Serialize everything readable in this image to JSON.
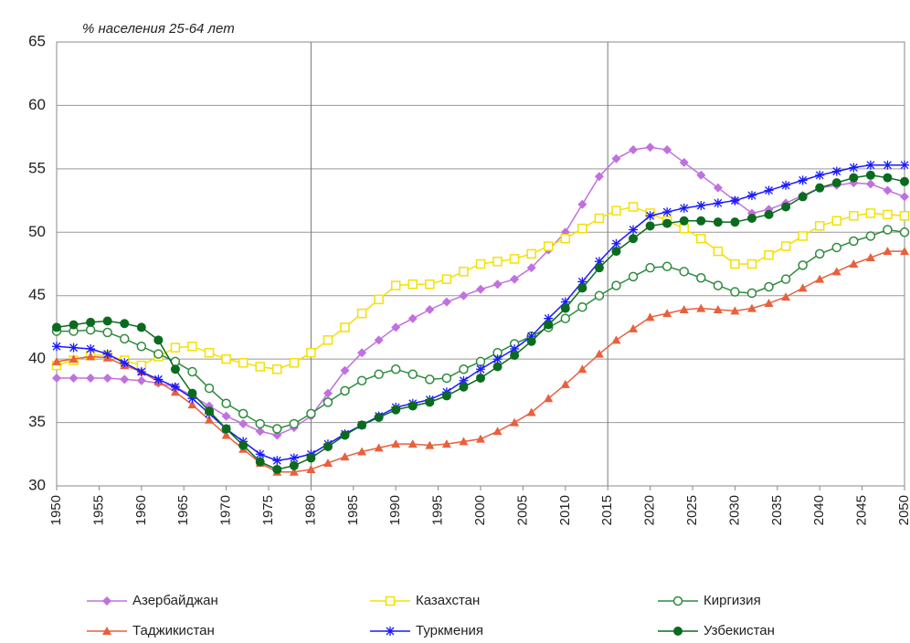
{
  "chart_data": {
    "type": "line",
    "title": "% населения 25-64 лет",
    "x": [
      1950,
      1952,
      1954,
      1956,
      1958,
      1960,
      1962,
      1964,
      1966,
      1968,
      1970,
      1972,
      1974,
      1976,
      1978,
      1980,
      1982,
      1984,
      1986,
      1988,
      1990,
      1992,
      1994,
      1996,
      1998,
      2000,
      2002,
      2004,
      2006,
      2008,
      2010,
      2012,
      2014,
      2016,
      2018,
      2020,
      2022,
      2024,
      2026,
      2028,
      2030,
      2032,
      2034,
      2036,
      2038,
      2040,
      2042,
      2044,
      2046,
      2048,
      2050
    ],
    "xlim": [
      1950,
      2050
    ],
    "xticks": [
      1950,
      1955,
      1960,
      1965,
      1970,
      1975,
      1980,
      1985,
      1990,
      1995,
      2000,
      2005,
      2010,
      2015,
      2020,
      2025,
      2030,
      2035,
      2040,
      2045,
      2050
    ],
    "x_gridlines": [
      1980,
      2015
    ],
    "ylim": [
      30,
      65
    ],
    "yticks": [
      30,
      35,
      40,
      45,
      50,
      55,
      60,
      65
    ],
    "grid": true,
    "legend": "bottom",
    "series": [
      {
        "name": "Азербайджан",
        "color": "#c070e0",
        "marker": "diamond",
        "values": [
          38.5,
          38.5,
          38.5,
          38.5,
          38.4,
          38.3,
          38.1,
          37.8,
          37.1,
          36.3,
          35.5,
          34.9,
          34.3,
          34.0,
          34.6,
          35.5,
          37.3,
          39.1,
          40.5,
          41.5,
          42.5,
          43.2,
          43.9,
          44.5,
          45.0,
          45.5,
          45.9,
          46.3,
          47.2,
          48.6,
          50.0,
          52.2,
          54.4,
          55.8,
          56.5,
          56.7,
          56.5,
          55.5,
          54.5,
          53.5,
          52.5,
          51.5,
          51.8,
          52.3,
          52.9,
          53.5,
          53.7,
          53.9,
          53.8,
          53.3,
          52.8
        ]
      },
      {
        "name": "Казахстан",
        "color": "#f5e000",
        "marker": "square",
        "values": [
          39.5,
          39.9,
          40.3,
          40.3,
          39.9,
          39.5,
          40.2,
          40.9,
          41.0,
          40.5,
          40.0,
          39.7,
          39.4,
          39.2,
          39.7,
          40.5,
          41.5,
          42.5,
          43.6,
          44.7,
          45.8,
          45.9,
          45.9,
          46.3,
          46.9,
          47.5,
          47.7,
          47.9,
          48.3,
          48.9,
          49.5,
          50.3,
          51.1,
          51.7,
          52.0,
          51.5,
          50.9,
          50.3,
          49.5,
          48.5,
          47.5,
          47.5,
          48.2,
          48.9,
          49.7,
          50.5,
          50.9,
          51.3,
          51.5,
          51.4,
          51.3
        ]
      },
      {
        "name": "Киргизия",
        "color": "#2e8b3e",
        "marker": "circle-open",
        "values": [
          42.2,
          42.2,
          42.3,
          42.1,
          41.6,
          41.0,
          40.4,
          39.8,
          39.0,
          37.7,
          36.5,
          35.7,
          34.9,
          34.5,
          34.9,
          35.7,
          36.6,
          37.5,
          38.3,
          38.8,
          39.2,
          38.8,
          38.4,
          38.5,
          39.2,
          39.8,
          40.5,
          41.2,
          41.8,
          42.5,
          43.2,
          44.1,
          45.0,
          45.8,
          46.5,
          47.2,
          47.3,
          46.9,
          46.4,
          45.8,
          45.3,
          45.2,
          45.7,
          46.3,
          47.4,
          48.3,
          48.8,
          49.3,
          49.7,
          50.2,
          50.0
        ]
      },
      {
        "name": "Таджикистан",
        "color": "#e8603c",
        "marker": "triangle",
        "values": [
          39.8,
          40.0,
          40.2,
          40.1,
          39.5,
          39.0,
          38.2,
          37.4,
          36.4,
          35.2,
          34.0,
          32.9,
          31.8,
          31.1,
          31.1,
          31.3,
          31.8,
          32.3,
          32.7,
          33.0,
          33.3,
          33.3,
          33.2,
          33.3,
          33.5,
          33.7,
          34.3,
          35.0,
          35.8,
          36.9,
          38.0,
          39.2,
          40.4,
          41.5,
          42.4,
          43.3,
          43.6,
          43.9,
          44.0,
          43.9,
          43.8,
          44.0,
          44.4,
          44.9,
          45.6,
          46.3,
          46.9,
          47.5,
          48.0,
          48.5,
          48.5
        ]
      },
      {
        "name": "Туркмения",
        "color": "#1a1aff",
        "marker": "star",
        "values": [
          41.0,
          40.9,
          40.8,
          40.4,
          39.7,
          39.0,
          38.4,
          37.8,
          36.9,
          35.7,
          34.5,
          33.5,
          32.5,
          32.0,
          32.2,
          32.5,
          33.3,
          34.1,
          34.8,
          35.5,
          36.2,
          36.5,
          36.8,
          37.4,
          38.3,
          39.2,
          40.0,
          40.8,
          41.8,
          43.2,
          44.5,
          46.1,
          47.7,
          49.1,
          50.2,
          51.3,
          51.6,
          51.9,
          52.1,
          52.3,
          52.5,
          52.9,
          53.3,
          53.7,
          54.1,
          54.5,
          54.8,
          55.1,
          55.3,
          55.3,
          55.3
        ]
      },
      {
        "name": "Узбекистан",
        "color": "#0a6b1f",
        "marker": "circle",
        "values": [
          42.5,
          42.7,
          42.9,
          43.0,
          42.8,
          42.5,
          41.5,
          39.2,
          37.3,
          35.9,
          34.5,
          33.2,
          31.9,
          31.3,
          31.6,
          32.2,
          33.1,
          34.0,
          34.8,
          35.4,
          36.0,
          36.3,
          36.6,
          37.1,
          37.8,
          38.5,
          39.4,
          40.3,
          41.4,
          42.7,
          44.0,
          45.6,
          47.2,
          48.5,
          49.5,
          50.5,
          50.7,
          50.9,
          50.9,
          50.8,
          50.8,
          51.1,
          51.4,
          52.0,
          52.8,
          53.5,
          53.9,
          54.3,
          54.5,
          54.3,
          54.0
        ]
      }
    ]
  }
}
